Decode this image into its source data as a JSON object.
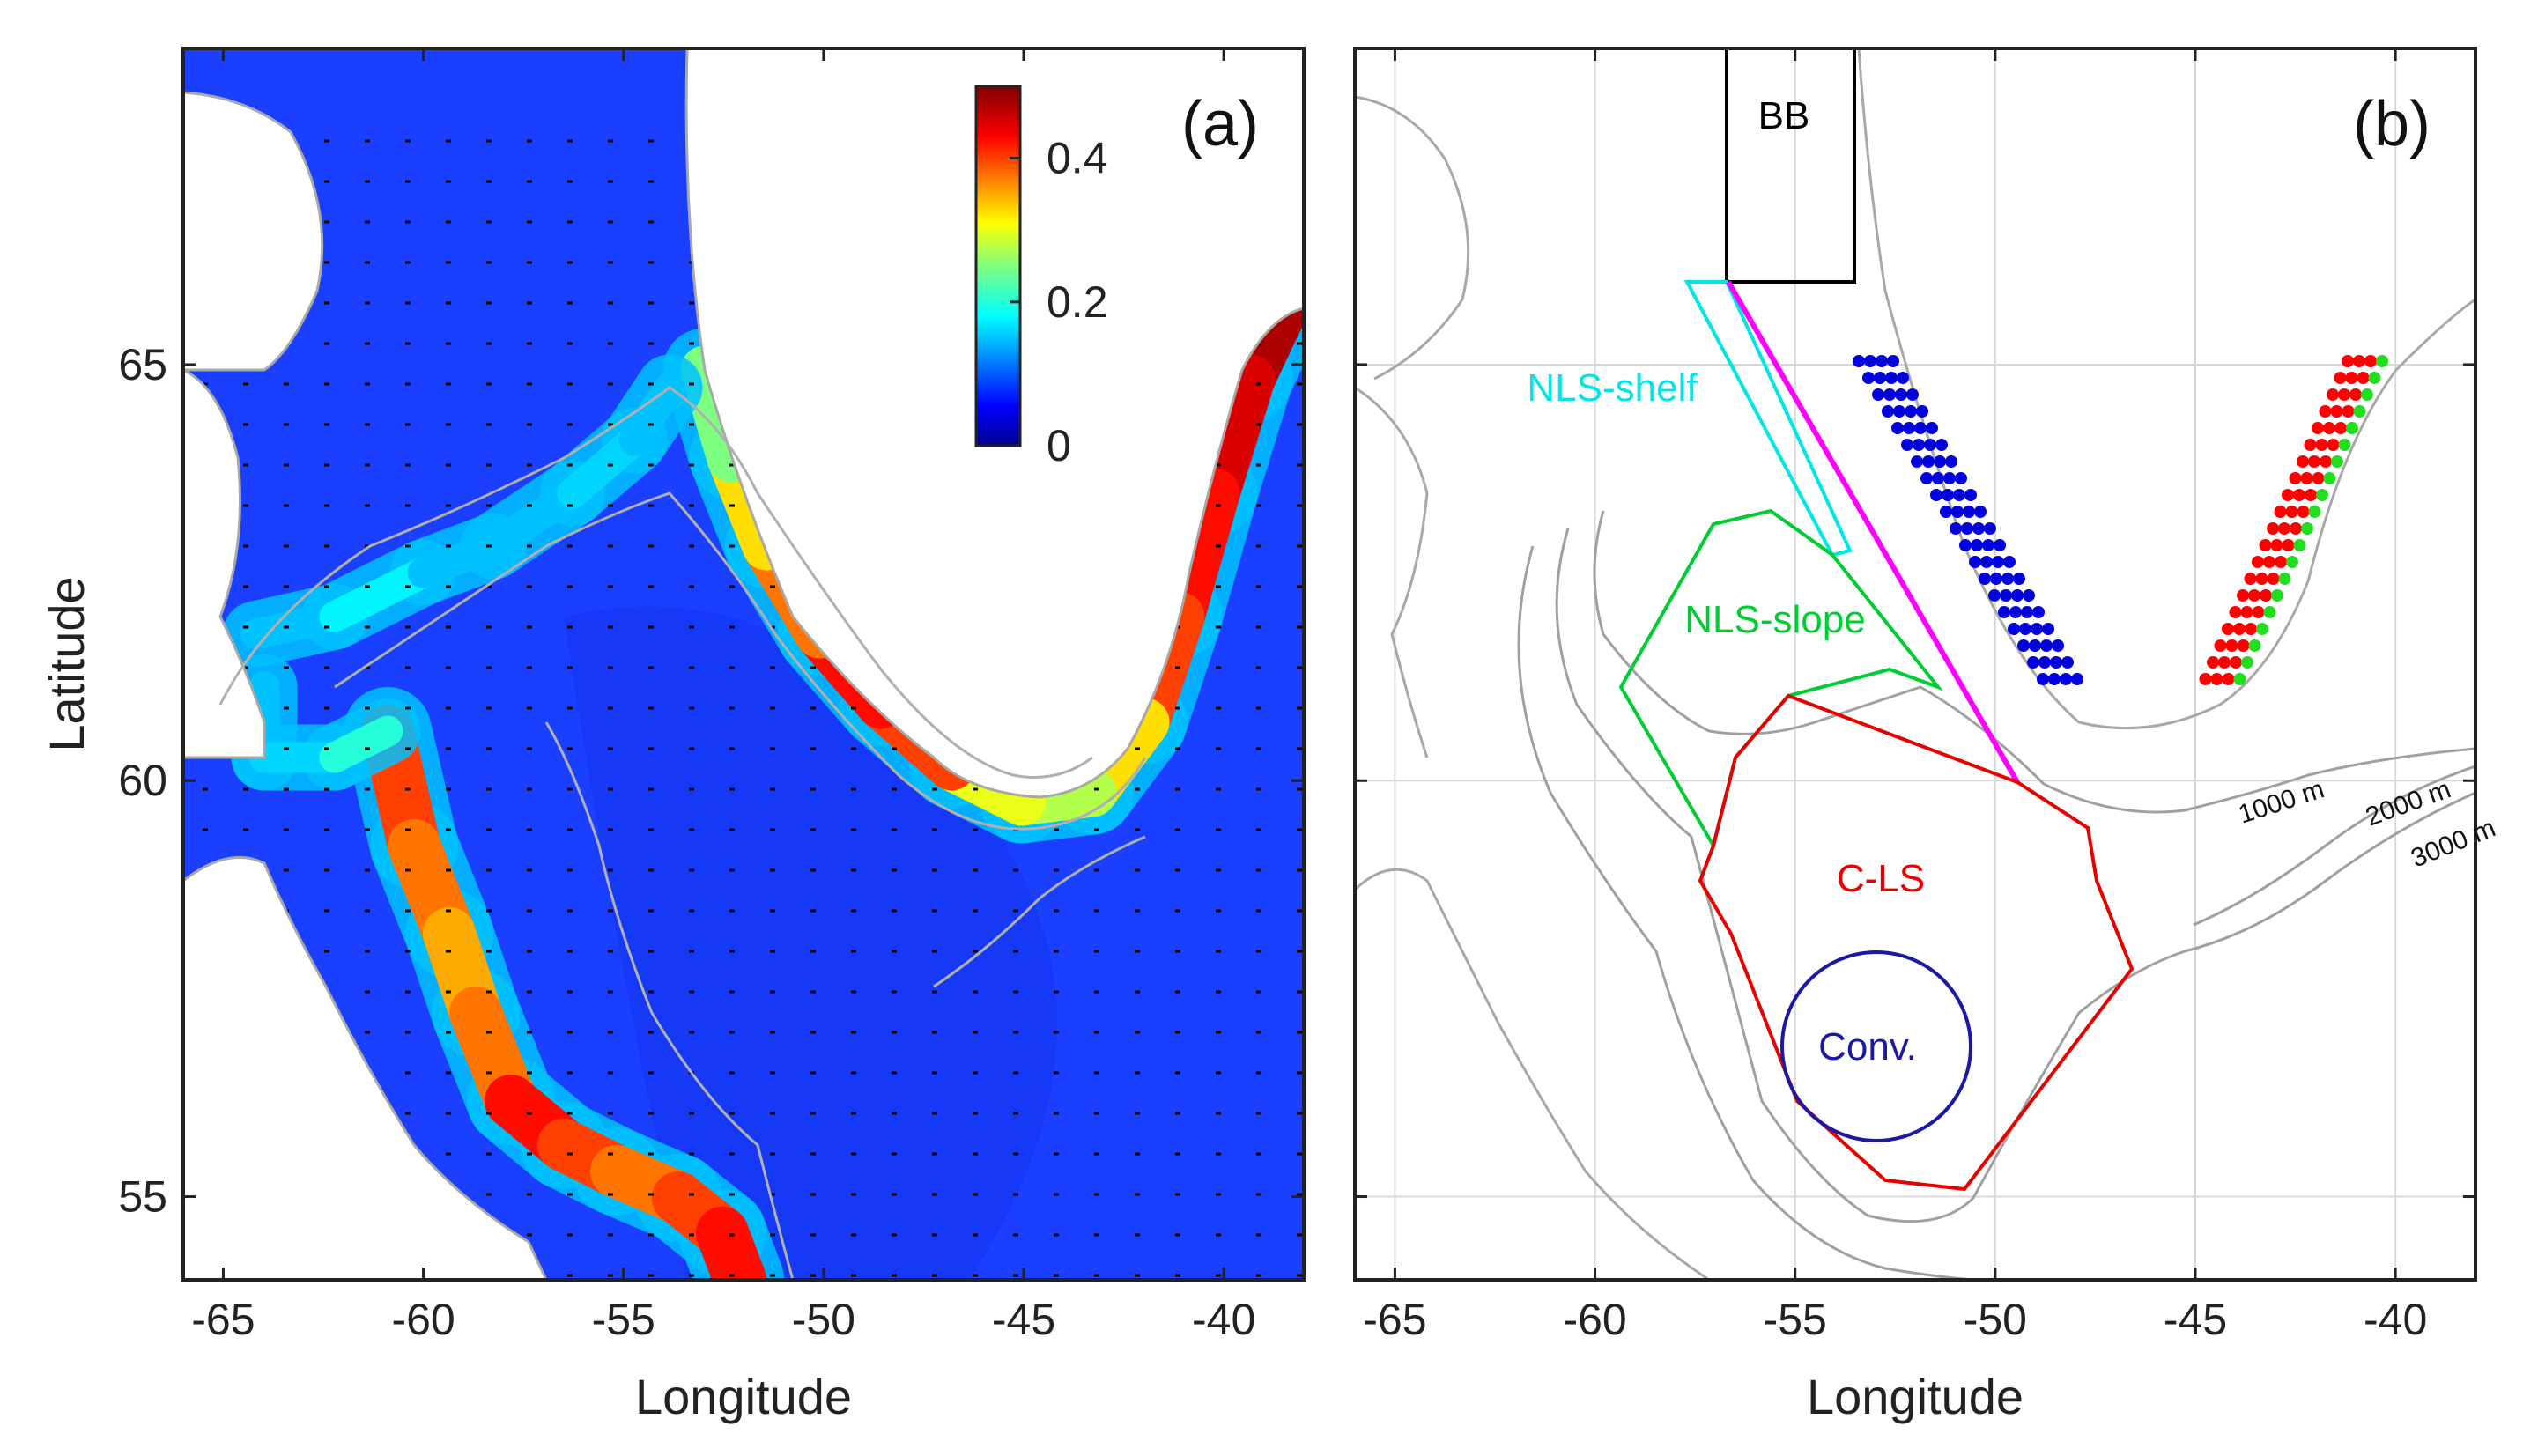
{
  "panel_a": {
    "tag": "(a)",
    "xlabel": "Longitude",
    "ylabel": "Latitude",
    "x_ticks": [
      "-65",
      "-60",
      "-55",
      "-50",
      "-45",
      "-40"
    ],
    "y_ticks": [
      "55",
      "60",
      "65"
    ],
    "xlim": [
      -66,
      -38
    ],
    "ylim": [
      54,
      68.8
    ],
    "colorbar": {
      "ticks": [
        "0",
        "0.2",
        "0.4"
      ],
      "range": [
        0,
        0.5
      ],
      "colormap": "jet"
    },
    "colors": {
      "land": "#ffffff",
      "coast": "#a8a8a8",
      "contour": "#b0b0b0",
      "arrows": "#000000"
    }
  },
  "panel_b": {
    "tag": "(b)",
    "xlabel": "Longitude",
    "x_ticks": [
      "-65",
      "-60",
      "-55",
      "-50",
      "-45",
      "-40"
    ],
    "xlim": [
      -66,
      -38
    ],
    "ylim": [
      54,
      68.8
    ],
    "regions": [
      {
        "label": "BB",
        "color": "#000000"
      },
      {
        "label": "NLS-shelf",
        "color": "#00e5e5"
      },
      {
        "label": "NLS-slope",
        "color": "#00cc33"
      },
      {
        "label": "C-LS",
        "color": "#e60000"
      },
      {
        "label": "Conv.",
        "color": "#1a1aa0"
      }
    ],
    "section_line_color": "#ff00ff",
    "station_colors": {
      "west": "#0000dd",
      "east_inner": "#ff0000",
      "east_outer": "#22dd22"
    },
    "contour_labels": [
      "1000 m",
      "2000 m",
      "3000 m"
    ],
    "colors": {
      "coast": "#a8a8a8",
      "contour": "#a0a0a0",
      "grid": "#d8d8d8"
    }
  }
}
